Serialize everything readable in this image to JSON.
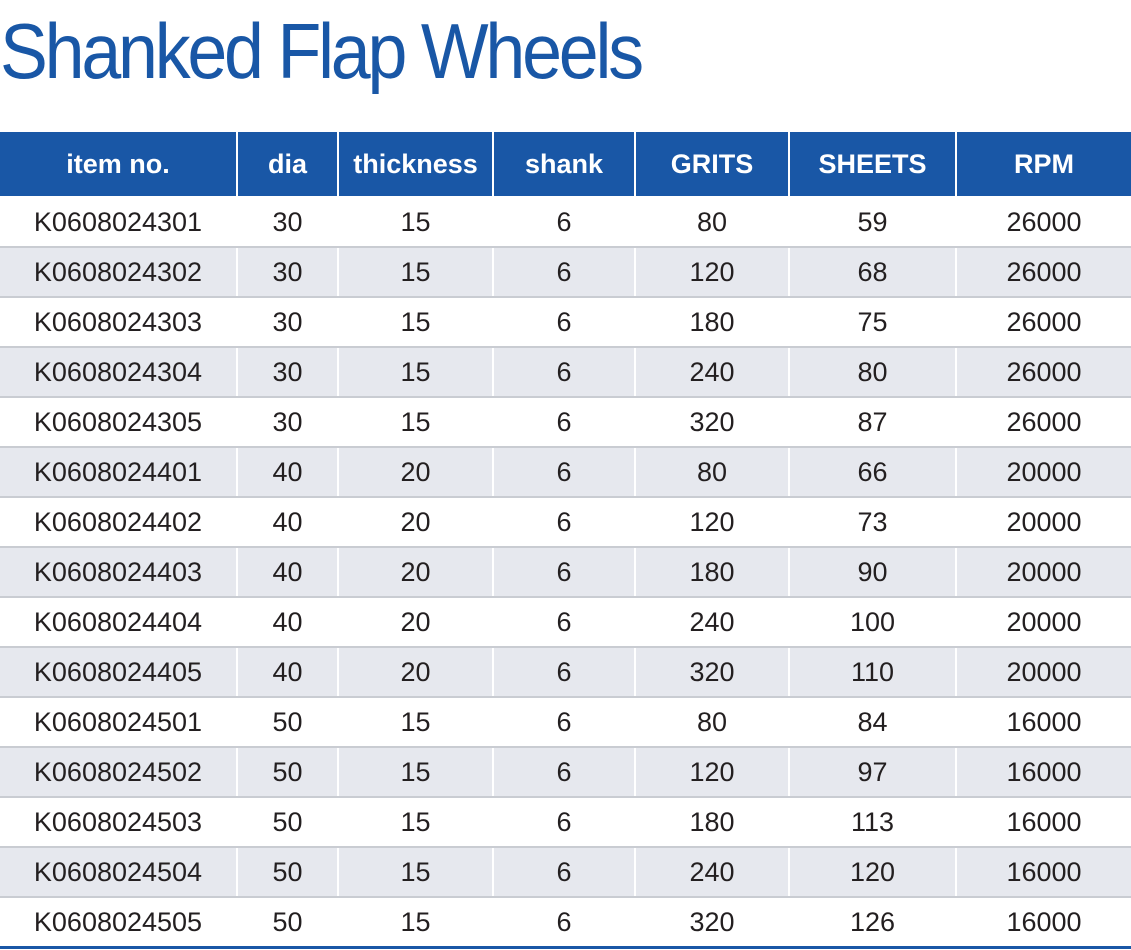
{
  "title": "Shanked Flap Wheels",
  "table": {
    "headers": [
      "item no.",
      "dia",
      "thickness",
      "shank",
      "GRITS",
      "SHEETS",
      "RPM"
    ],
    "rows": [
      [
        "K0608024301",
        "30",
        "15",
        "6",
        "80",
        "59",
        "26000"
      ],
      [
        "K0608024302",
        "30",
        "15",
        "6",
        "120",
        "68",
        "26000"
      ],
      [
        "K0608024303",
        "30",
        "15",
        "6",
        "180",
        "75",
        "26000"
      ],
      [
        "K0608024304",
        "30",
        "15",
        "6",
        "240",
        "80",
        "26000"
      ],
      [
        "K0608024305",
        "30",
        "15",
        "6",
        "320",
        "87",
        "26000"
      ],
      [
        "K0608024401",
        "40",
        "20",
        "6",
        "80",
        "66",
        "20000"
      ],
      [
        "K0608024402",
        "40",
        "20",
        "6",
        "120",
        "73",
        "20000"
      ],
      [
        "K0608024403",
        "40",
        "20",
        "6",
        "180",
        "90",
        "20000"
      ],
      [
        "K0608024404",
        "40",
        "20",
        "6",
        "240",
        "100",
        "20000"
      ],
      [
        "K0608024405",
        "40",
        "20",
        "6",
        "320",
        "110",
        "20000"
      ],
      [
        "K0608024501",
        "50",
        "15",
        "6",
        "80",
        "84",
        "16000"
      ],
      [
        "K0608024502",
        "50",
        "15",
        "6",
        "120",
        "97",
        "16000"
      ],
      [
        "K0608024503",
        "50",
        "15",
        "6",
        "180",
        "113",
        "16000"
      ],
      [
        "K0608024504",
        "50",
        "15",
        "6",
        "240",
        "120",
        "16000"
      ],
      [
        "K0608024505",
        "50",
        "15",
        "6",
        "320",
        "126",
        "16000"
      ]
    ]
  },
  "colors": {
    "brand_blue": "#1957a6",
    "row_stripe": "#e6e8ee",
    "text": "#231f20"
  }
}
